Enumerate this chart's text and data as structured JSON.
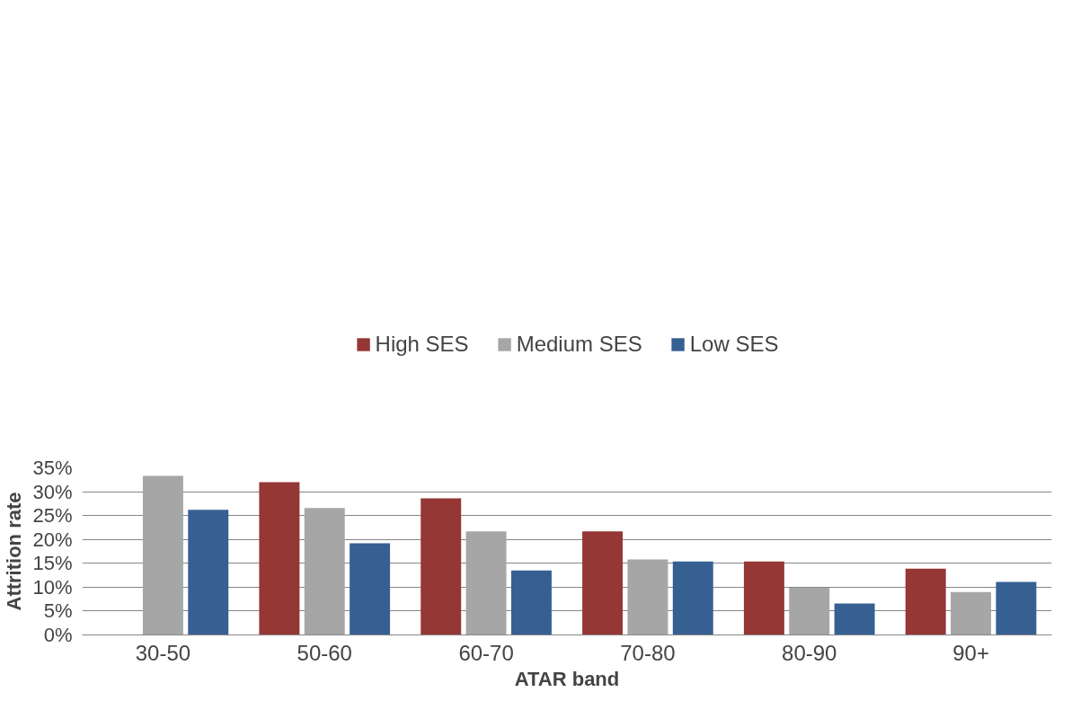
{
  "chart_data": {
    "type": "bar",
    "xlabel": "ATAR band",
    "ylabel": "Attrition rate",
    "categories": [
      "30-50",
      "50-60",
      "60-70",
      "70-80",
      "80-90",
      "90+"
    ],
    "series": [
      {
        "name": "High SES",
        "color": "#953735",
        "values": [
          null,
          32.0,
          28.6,
          21.7,
          15.4,
          13.9
        ]
      },
      {
        "name": "Medium SES",
        "color": "#a6a6a6",
        "values": [
          33.3,
          26.6,
          21.7,
          15.8,
          9.9,
          9.0
        ]
      },
      {
        "name": "Low SES",
        "color": "#376092",
        "values": [
          26.2,
          19.2,
          13.5,
          15.4,
          6.6,
          11.1
        ]
      }
    ],
    "ylim": [
      0,
      35
    ],
    "yticks": [
      {
        "value": 0,
        "label": "0%"
      },
      {
        "value": 5,
        "label": "5%"
      },
      {
        "value": 10,
        "label": "10%"
      },
      {
        "value": 15,
        "label": "15%"
      },
      {
        "value": 20,
        "label": "20%"
      },
      {
        "value": 25,
        "label": "25%"
      },
      {
        "value": 30,
        "label": "30%"
      },
      {
        "value": 35,
        "label": "35%"
      }
    ],
    "grid": "y",
    "legend": "top"
  }
}
